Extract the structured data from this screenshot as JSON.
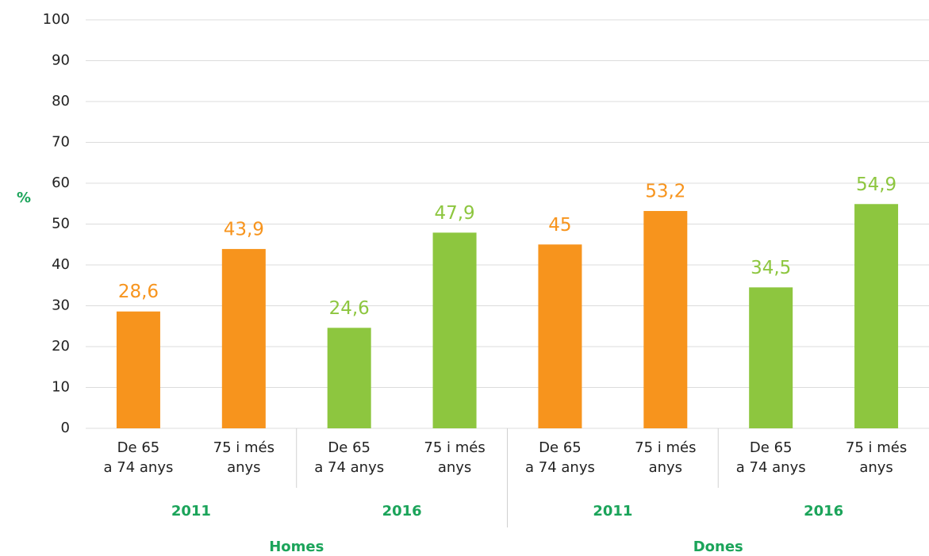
{
  "chart_data": {
    "type": "bar",
    "y_label": "%",
    "categories": [
      "De 65\na 74 anys",
      "75 i més\nanys",
      "De 65\na 74 anys",
      "75 i més\nanys",
      "De 65\na 74 anys",
      "75 i més\nanys",
      "De 65\na 74 anys",
      "75 i més\nanys"
    ],
    "values": [
      28.6,
      43.9,
      24.6,
      47.9,
      45,
      53.2,
      34.5,
      54.9
    ],
    "value_labels": [
      "28,6",
      "43,9",
      "24,6",
      "47,9",
      "45",
      "53,2",
      "34,5",
      "54,9"
    ],
    "colors": [
      "#f7941d",
      "#f7941d",
      "#8dc63f",
      "#8dc63f",
      "#f7941d",
      "#f7941d",
      "#8dc63f",
      "#8dc63f"
    ],
    "year_labels": [
      "2011",
      "2016",
      "2011",
      "2016"
    ],
    "sex_labels": [
      "Homes",
      "Dones"
    ],
    "ylim": [
      0,
      100
    ],
    "yticks": [
      0,
      10,
      20,
      30,
      40,
      50,
      60,
      70,
      80,
      90,
      100
    ],
    "grid": true
  }
}
